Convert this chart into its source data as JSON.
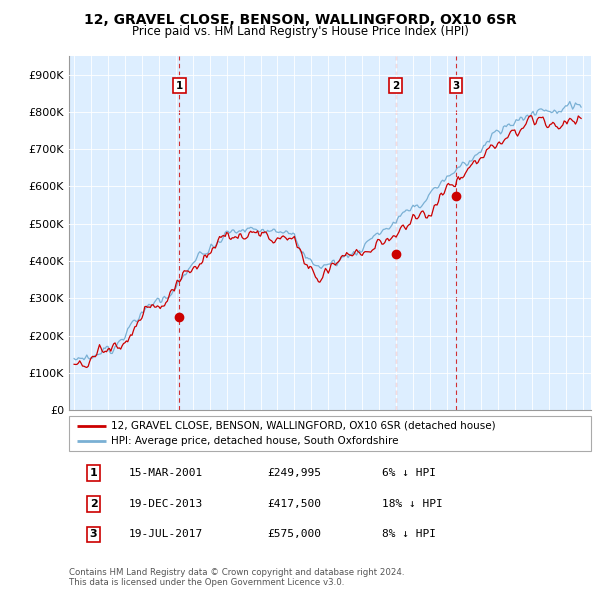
{
  "title_line1": "12, GRAVEL CLOSE, BENSON, WALLINGFORD, OX10 6SR",
  "title_line2": "Price paid vs. HM Land Registry's House Price Index (HPI)",
  "property_label": "12, GRAVEL CLOSE, BENSON, WALLINGFORD, OX10 6SR (detached house)",
  "hpi_label": "HPI: Average price, detached house, South Oxfordshire",
  "copyright_text": "Contains HM Land Registry data © Crown copyright and database right 2024.\nThis data is licensed under the Open Government Licence v3.0.",
  "transactions": [
    {
      "num": "1",
      "date": "15-MAR-2001",
      "price": "£249,995",
      "hpi": "6% ↓ HPI"
    },
    {
      "num": "2",
      "date": "19-DEC-2013",
      "price": "£417,500",
      "hpi": "18% ↓ HPI"
    },
    {
      "num": "3",
      "date": "19-JUL-2017",
      "price": "£575,000",
      "hpi": "8% ↓ HPI"
    }
  ],
  "transaction_dates": [
    2001.21,
    2013.97,
    2017.55
  ],
  "transaction_prices": [
    249995,
    417500,
    575000
  ],
  "property_color": "#cc0000",
  "hpi_color": "#7ab0d4",
  "bg_color": "#ddeeff",
  "ylim": [
    0,
    950000
  ],
  "yticks": [
    0,
    100000,
    200000,
    300000,
    400000,
    500000,
    600000,
    700000,
    800000,
    900000
  ],
  "ytick_labels": [
    "£0",
    "£100K",
    "£200K",
    "£300K",
    "£400K",
    "£500K",
    "£600K",
    "£700K",
    "£800K",
    "£900K"
  ],
  "xlim_start": 1994.7,
  "xlim_end": 2025.5
}
